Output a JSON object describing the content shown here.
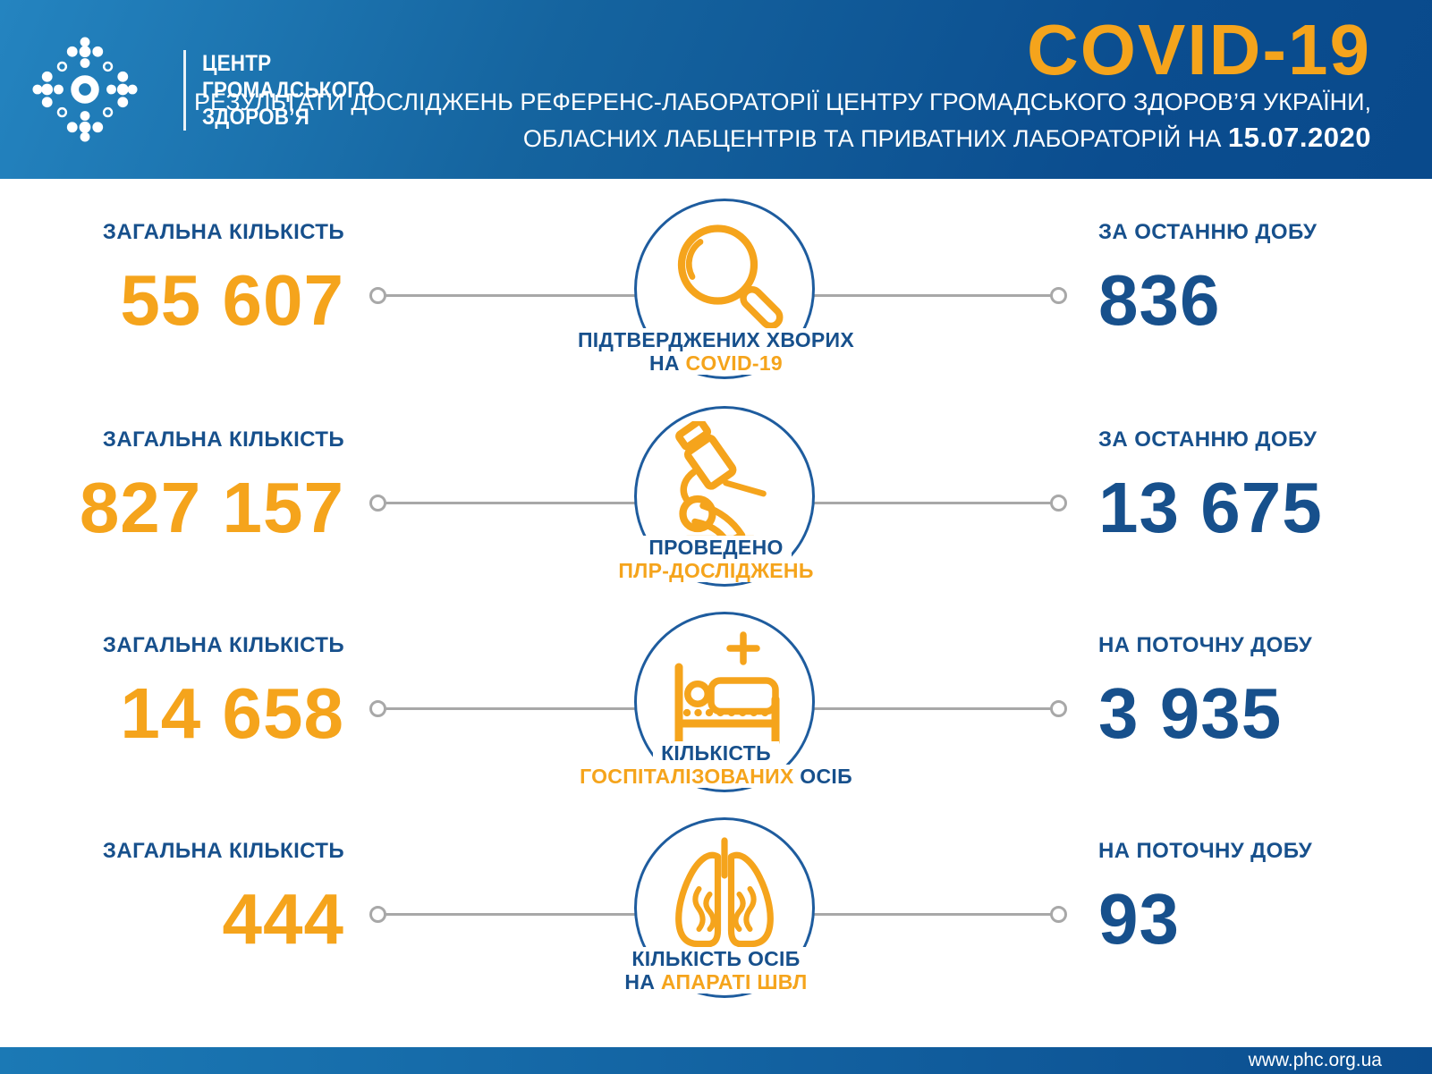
{
  "header": {
    "org_name": "ЦЕНТР\nГРОМАДСЬКОГО\nЗДОРОВ’Я",
    "title": "COVID-19",
    "subtitle_line1": "РЕЗУЛЬТАТИ ДОСЛІДЖЕНЬ РЕФЕРЕНС-ЛАБОРАТОРІЇ ЦЕНТРУ ГРОМАДСЬКОГО ЗДОРОВ’Я УКРАЇНИ,",
    "subtitle_line2": "ОБЛАСНИХ ЛАБЦЕНТРІВ ТА ПРИВАТНИХ ЛАБОРАТОРІЙ НА ",
    "date": "15.07.2020"
  },
  "stats": [
    {
      "icon": "magnifier-icon",
      "left_label": "ЗАГАЛЬНА КІЛЬКІСТЬ",
      "left_value": "55 607",
      "right_label": "ЗА ОСТАННЮ ДОБУ",
      "right_value": "836",
      "caption_line1": [
        {
          "text": "ПІДТВЕРДЖЕНИХ ХВОРИХ",
          "color": "blue"
        }
      ],
      "caption_line2": [
        {
          "text": "НА ",
          "color": "blue"
        },
        {
          "text": "COVID-19",
          "color": "orange"
        }
      ]
    },
    {
      "icon": "microscope-icon",
      "left_label": "ЗАГАЛЬНА КІЛЬКІСТЬ",
      "left_value": "827 157",
      "right_label": "ЗА ОСТАННЮ ДОБУ",
      "right_value": "13 675",
      "caption_line1": [
        {
          "text": "ПРОВЕДЕНО",
          "color": "blue"
        }
      ],
      "caption_line2": [
        {
          "text": "ПЛР-ДОСЛІДЖЕНЬ",
          "color": "orange"
        }
      ]
    },
    {
      "icon": "hospital-bed-icon",
      "left_label": "ЗАГАЛЬНА КІЛЬКІСТЬ",
      "left_value": "14 658",
      "right_label": "НА ПОТОЧНУ ДОБУ",
      "right_value": "3 935",
      "caption_line1": [
        {
          "text": "КІЛЬКІСТЬ",
          "color": "blue"
        }
      ],
      "caption_line2": [
        {
          "text": "ГОСПІТАЛІЗОВАНИХ",
          "color": "orange"
        },
        {
          "text": " ОСІБ",
          "color": "blue"
        }
      ]
    },
    {
      "icon": "lungs-icon",
      "left_label": "ЗАГАЛЬНА КІЛЬКІСТЬ",
      "left_value": "444",
      "right_label": "НА ПОТОЧНУ ДОБУ",
      "right_value": "93",
      "caption_line1": [
        {
          "text": "КІЛЬКІСТЬ ОСІБ",
          "color": "blue"
        }
      ],
      "caption_line2": [
        {
          "text": "НА ",
          "color": "blue"
        },
        {
          "text": "АПАРАТІ ШВЛ",
          "color": "orange"
        }
      ]
    }
  ],
  "footer": {
    "url": "www.phc.org.ua"
  },
  "colors": {
    "accent_orange": "#F5A41C",
    "primary_blue": "#17508C",
    "circle_stroke_blue": "#1E5C9E",
    "connector_gray": "#A8A8A8",
    "header_gradient_start": "#2484C0",
    "header_gradient_end": "#094A8C"
  }
}
